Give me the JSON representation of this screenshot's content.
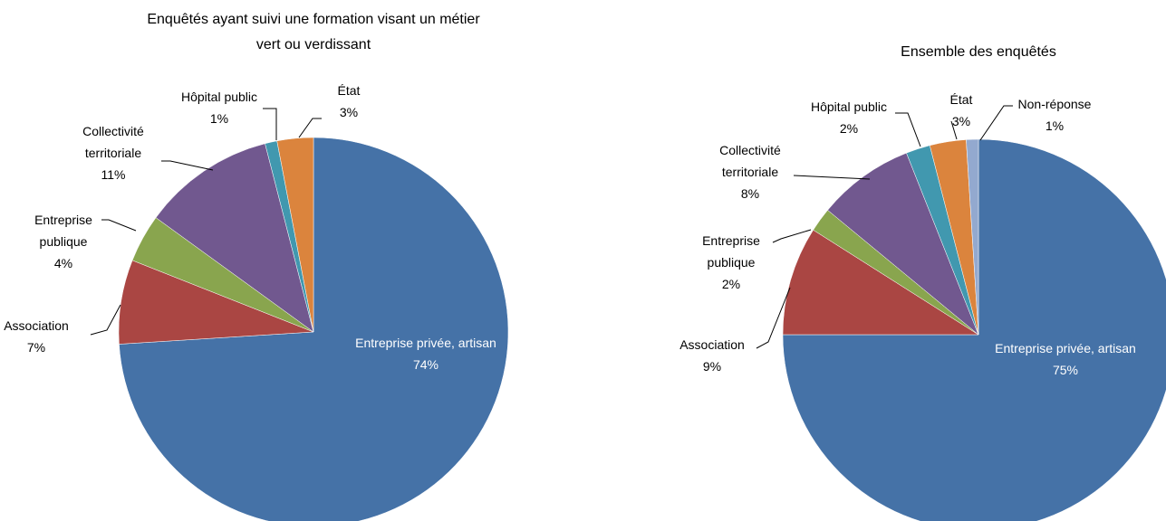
{
  "chart_data": [
    {
      "type": "pie",
      "title": "Enquêtés ayant suivi une formation visant un métier vert ou verdissant",
      "categories": [
        "Entreprise privée, artisan",
        "Association",
        "Entreprise publique",
        "Collectivité territoriale",
        "Hôpital public",
        "État"
      ],
      "values": [
        74,
        7,
        4,
        11,
        1,
        3
      ],
      "value_labels": [
        "74%",
        "7%",
        "4%",
        "11%",
        "1%",
        "3%"
      ],
      "colors": [
        "#4572a7",
        "#aa4643",
        "#89a54e",
        "#71588f",
        "#4198af",
        "#db843d"
      ]
    },
    {
      "type": "pie",
      "title": "Ensemble des enquêtés",
      "categories": [
        "Entreprise privée, artisan",
        "Association",
        "Entreprise publique",
        "Collectivité territoriale",
        "Hôpital public",
        "État",
        "Non-réponse"
      ],
      "values": [
        75,
        9,
        2,
        8,
        2,
        3,
        1
      ],
      "value_labels": [
        "75%",
        "9%",
        "2%",
        "8%",
        "2%",
        "3%",
        "1%"
      ],
      "colors": [
        "#4572a7",
        "#aa4643",
        "#89a54e",
        "#71588f",
        "#4198af",
        "#db843d",
        "#93a9cf"
      ]
    }
  ]
}
